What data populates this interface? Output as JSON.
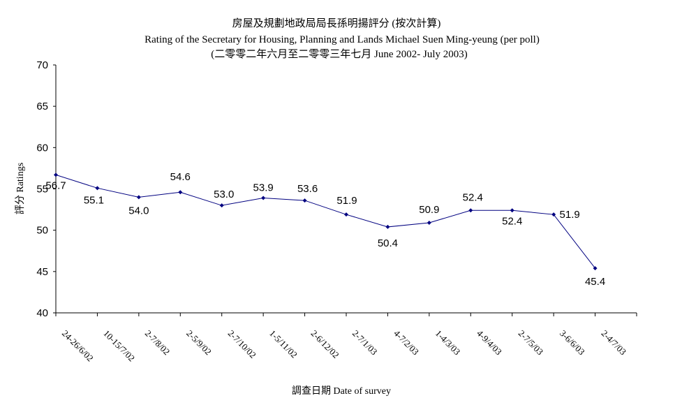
{
  "chart_data": {
    "type": "line",
    "title": "房屋及規劃地政局局長孫明揚評分 (按次計算)",
    "subtitle": "Rating of the Secretary for Housing, Planning and Lands Michael Suen Ming-yeung (per poll)",
    "subtitle2": "(二零零二年六月至二零零三年七月 June 2002- July 2003)",
    "xlabel": "調查日期 Date of survey",
    "ylabel": "評分 Ratings",
    "ylim": [
      40,
      70
    ],
    "yticks": [
      "40",
      "45",
      "50",
      "55",
      "60",
      "65",
      "70"
    ],
    "categories": [
      "24-26/6/02",
      "10-15/7/02",
      "2-7/8/02",
      "2-5/9/02",
      "2-7/10/02",
      "1-5/11/02",
      "2-6/12/02",
      "2-7/1/03",
      "4-7/2/03",
      "1-4/3/03",
      "4-9/4/03",
      "2-7/5/03",
      "3-6/6/03",
      "2-4/7/03"
    ],
    "values": [
      56.7,
      55.1,
      54.0,
      54.6,
      53.0,
      53.9,
      53.6,
      51.9,
      50.4,
      50.9,
      52.4,
      52.4,
      51.9,
      45.4
    ],
    "data_labels": [
      "56.7",
      "55.1",
      "54.0",
      "54.6",
      "53.0",
      "53.9",
      "53.6",
      "51.9",
      "50.4",
      "50.9",
      "52.4",
      "52.4",
      "51.9",
      "45.4"
    ],
    "grid": false,
    "line_color": "#000080"
  }
}
